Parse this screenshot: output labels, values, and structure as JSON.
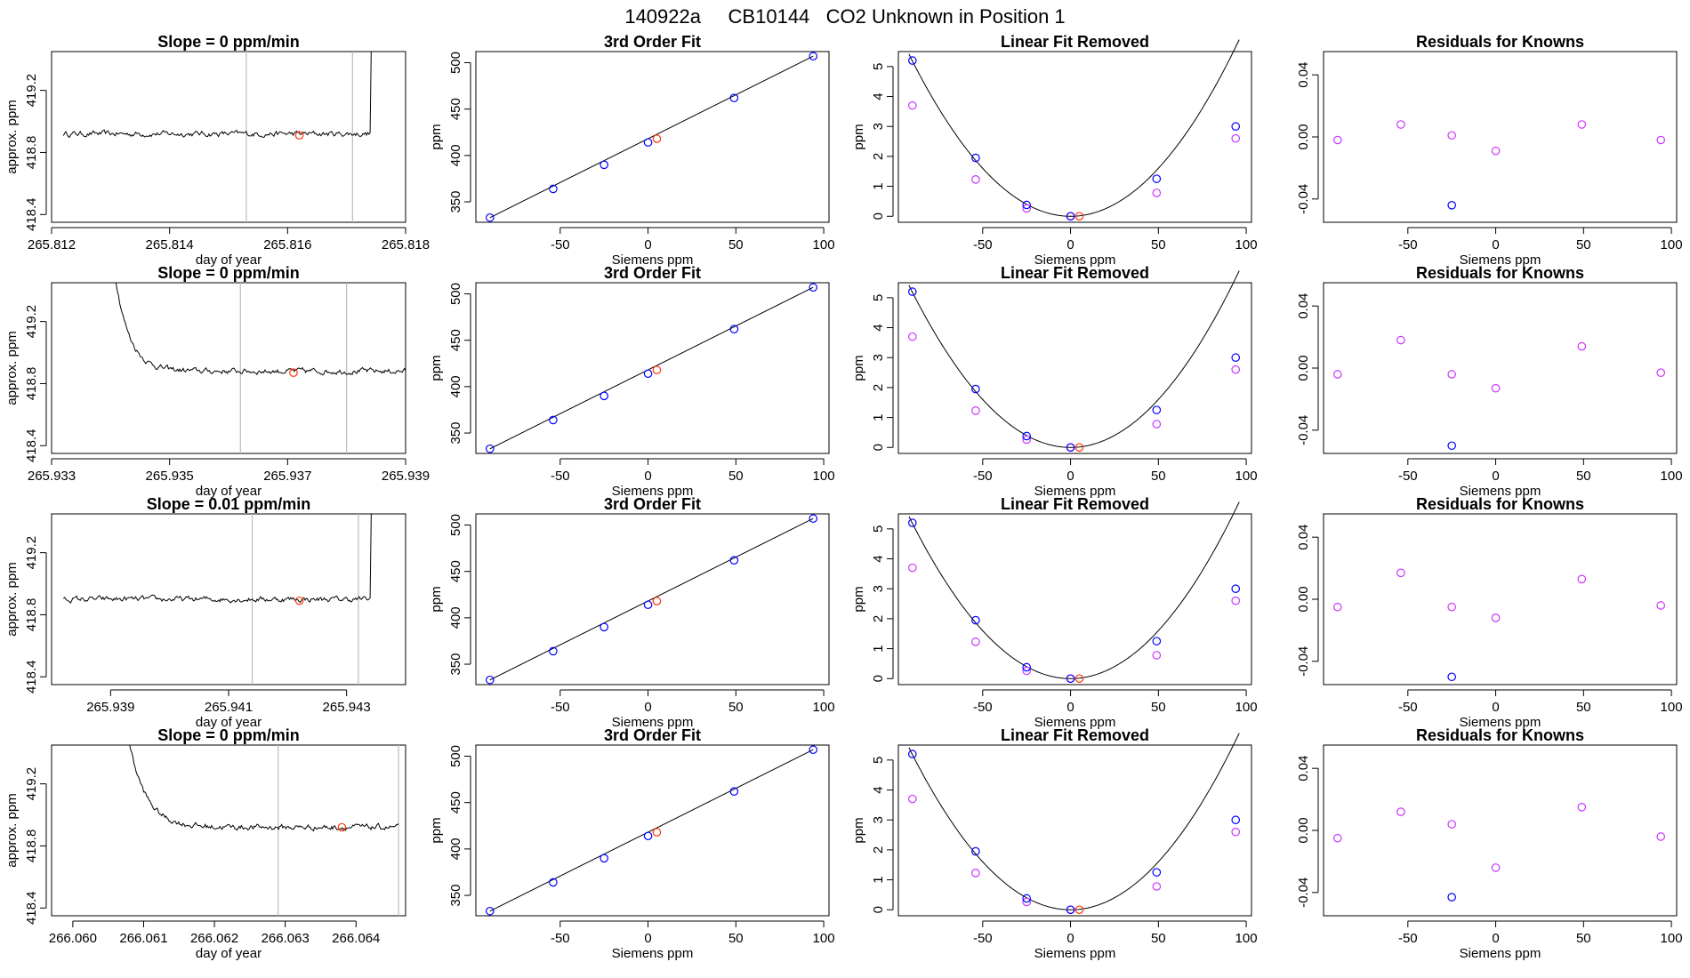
{
  "figure": {
    "title_parts": [
      "140922a",
      "CB10144",
      "CO2 Unknown in Position  1"
    ]
  },
  "colors": {
    "known": "#0000ff",
    "estimated": "#cc33ff",
    "unknown": "#ff3300",
    "line": "#000000",
    "window": "#bbbbbb"
  },
  "chart_data": [
    {
      "type": "line",
      "row": 1,
      "title": "Slope =  0  ppm/min",
      "xlabel": "day of year",
      "ylabel": "approx. ppm",
      "xlim": [
        265.812,
        265.818
      ],
      "ylim": [
        418.35,
        419.45
      ],
      "xticks": [
        265.812,
        265.814,
        265.816,
        265.818
      ],
      "xtick_labels": [
        "265.812",
        "265.814",
        "265.816",
        "265.818"
      ],
      "yticks": [
        418.4,
        418.8,
        419.2
      ],
      "ytick_labels": [
        "418.4",
        "418.8",
        "419.2"
      ],
      "trace": {
        "x_start": 265.8122,
        "x_end": 265.8175,
        "baseline": 418.92,
        "noise": 0.018,
        "jump_start": 265.8174,
        "jump_height": 0.6,
        "decay": false
      },
      "window_lines": [
        265.8153,
        265.8171
      ],
      "unknown_point": {
        "x": 265.8162,
        "y": 418.91
      }
    },
    {
      "type": "line",
      "row": 2,
      "title": "Slope =  0  ppm/min",
      "xlabel": "day of year",
      "ylabel": "approx. ppm",
      "xlim": [
        265.933,
        265.939
      ],
      "ylim": [
        418.35,
        419.45
      ],
      "xticks": [
        265.933,
        265.935,
        265.937,
        265.939
      ],
      "xtick_labels": [
        "265.933",
        "265.935",
        "265.937",
        "265.939"
      ],
      "yticks": [
        418.4,
        418.8,
        419.2
      ],
      "ytick_labels": [
        "418.4",
        "418.8",
        "419.2"
      ],
      "trace": {
        "x_start": 265.934,
        "x_end": 265.939,
        "baseline": 418.88,
        "noise": 0.018,
        "jump_start": null,
        "jump_height": 0,
        "decay": true,
        "decay_peak": 419.45,
        "decay_span": 0.001
      },
      "window_lines": [
        265.9362,
        265.938
      ],
      "unknown_point": {
        "x": 265.9371,
        "y": 418.87
      }
    },
    {
      "type": "line",
      "row": 3,
      "title": "Slope =  0.01  ppm/min",
      "xlabel": "day of year",
      "ylabel": "approx. ppm",
      "xlim": [
        265.938,
        265.944
      ],
      "ylim": [
        418.35,
        419.45
      ],
      "xticks": [
        265.939,
        265.941,
        265.943
      ],
      "xtick_labels": [
        "265.939",
        "265.941",
        "265.943"
      ],
      "yticks": [
        418.4,
        418.8,
        419.2
      ],
      "ytick_labels": [
        "418.4",
        "418.8",
        "419.2"
      ],
      "trace": {
        "x_start": 265.9382,
        "x_end": 265.9435,
        "baseline": 418.9,
        "noise": 0.018,
        "jump_start": 265.9434,
        "jump_height": 0.6,
        "decay": false
      },
      "window_lines": [
        265.9414,
        265.9432
      ],
      "unknown_point": {
        "x": 265.9422,
        "y": 418.89
      }
    },
    {
      "type": "line",
      "row": 4,
      "title": "Slope =  0  ppm/min",
      "xlabel": "day of year",
      "ylabel": "approx. ppm",
      "xlim": [
        266.0597,
        266.0647
      ],
      "ylim": [
        418.35,
        419.45
      ],
      "xticks": [
        266.06,
        266.061,
        266.062,
        266.063,
        266.064
      ],
      "xtick_labels": [
        "266.060",
        "266.061",
        "266.062",
        "266.063",
        "266.064"
      ],
      "yticks": [
        418.4,
        418.8,
        419.2
      ],
      "ytick_labels": [
        "418.4",
        "418.8",
        "419.2"
      ],
      "trace": {
        "x_start": 266.0607,
        "x_end": 266.0646,
        "baseline": 418.92,
        "noise": 0.018,
        "jump_start": null,
        "jump_height": 0,
        "decay": true,
        "decay_peak": 419.45,
        "decay_span": 0.001
      },
      "window_lines": [
        266.0629,
        266.0646
      ],
      "unknown_point": {
        "x": 266.0638,
        "y": 418.92
      }
    }
  ],
  "fit_panel": {
    "title": "3rd Order Fit",
    "xlabel": "Siemens ppm",
    "ylabel": "ppm",
    "xlim": [
      -98,
      103
    ],
    "ylim": [
      328,
      512
    ],
    "xticks": [
      -50,
      0,
      50,
      100
    ],
    "xtick_labels": [
      "-50",
      "0",
      "50",
      "100"
    ],
    "yticks": [
      350,
      400,
      450,
      500
    ],
    "ytick_labels": [
      "350",
      "400",
      "450",
      "500"
    ],
    "known_x": [
      -90,
      -54,
      -25,
      0,
      49,
      94
    ],
    "known_y": [
      333,
      364,
      390,
      414,
      462,
      507
    ],
    "line_x": [
      -90,
      94
    ],
    "line_y": [
      333,
      507
    ],
    "unknown": {
      "x": 5,
      "y": 418
    }
  },
  "linear_removed_panel": {
    "title": "Linear Fit Removed",
    "xlabel": "Siemens ppm",
    "ylabel": "ppm",
    "xlim": [
      -98,
      103
    ],
    "ylim": [
      -0.2,
      5.5
    ],
    "xticks": [
      -50,
      0,
      50,
      100
    ],
    "xtick_labels": [
      "-50",
      "0",
      "50",
      "100"
    ],
    "yticks": [
      0,
      1,
      2,
      3,
      4,
      5
    ],
    "ytick_labels": [
      "0",
      "1",
      "2",
      "3",
      "4",
      "5"
    ],
    "curve_x_range": [
      -92,
      96
    ],
    "curve_coeffs": [
      0.00064,
      0.0,
      0.0
    ],
    "known_x": [
      -90,
      -54,
      -25,
      0,
      49,
      94
    ],
    "known_y": [
      5.2,
      1.95,
      0.38,
      0.0,
      1.25,
      3.0
    ],
    "estimated_x": [
      -90,
      -54,
      -25,
      0,
      49,
      94
    ],
    "estimated_y": [
      3.7,
      1.23,
      0.26,
      0.0,
      0.78,
      2.6
    ],
    "unknown": {
      "x": 5,
      "y": 0.0
    }
  },
  "residual_panels": [
    {
      "title": "Residuals for Knowns",
      "xlabel": "Siemens ppm",
      "ylabel": "",
      "xlim": [
        -98,
        103
      ],
      "ylim": [
        -0.055,
        0.055
      ],
      "xticks": [
        -50,
        0,
        50,
        100
      ],
      "xtick_labels": [
        "-50",
        "0",
        "50",
        "100"
      ],
      "yticks": [
        -0.04,
        0.0,
        0.04
      ],
      "ytick_labels": [
        "-0.04",
        "0.00",
        "0.04"
      ],
      "x": [
        -90,
        -54,
        -25,
        0,
        49,
        94
      ],
      "y": [
        -0.002,
        0.008,
        0.001,
        -0.009,
        0.008,
        -0.002
      ],
      "highlight_x": -25,
      "highlight_y": -0.044
    },
    {
      "title": "Residuals for Knowns",
      "xlabel": "Siemens ppm",
      "ylabel": "",
      "xlim": [
        -98,
        103
      ],
      "ylim": [
        -0.055,
        0.055
      ],
      "xticks": [
        -50,
        0,
        50,
        100
      ],
      "xtick_labels": [
        "-50",
        "0",
        "50",
        "100"
      ],
      "yticks": [
        -0.04,
        0.0,
        0.04
      ],
      "ytick_labels": [
        "-0.04",
        "0.00",
        "0.04"
      ],
      "x": [
        -90,
        -54,
        -25,
        0,
        49,
        94
      ],
      "y": [
        -0.004,
        0.018,
        -0.004,
        -0.013,
        0.014,
        -0.003
      ],
      "highlight_x": -25,
      "highlight_y": -0.05
    },
    {
      "title": "Residuals for Knowns",
      "xlabel": "Siemens ppm",
      "ylabel": "",
      "xlim": [
        -98,
        103
      ],
      "ylim": [
        -0.055,
        0.055
      ],
      "xticks": [
        -50,
        0,
        50,
        100
      ],
      "xtick_labels": [
        "-50",
        "0",
        "50",
        "100"
      ],
      "yticks": [
        -0.04,
        0.0,
        0.04
      ],
      "ytick_labels": [
        "-0.04",
        "0.00",
        "0.04"
      ],
      "x": [
        -90,
        -54,
        -25,
        0,
        49,
        94
      ],
      "y": [
        -0.005,
        0.017,
        -0.005,
        -0.012,
        0.013,
        -0.004
      ],
      "highlight_x": -25,
      "highlight_y": -0.05
    },
    {
      "title": "Residuals for Knowns",
      "xlabel": "Siemens ppm",
      "ylabel": "",
      "xlim": [
        -98,
        103
      ],
      "ylim": [
        -0.055,
        0.055
      ],
      "xticks": [
        -50,
        0,
        50,
        100
      ],
      "xtick_labels": [
        "-50",
        "0",
        "50",
        "100"
      ],
      "yticks": [
        -0.04,
        0.0,
        0.04
      ],
      "ytick_labels": [
        "-0.04",
        "0.00",
        "0.04"
      ],
      "x": [
        -90,
        -54,
        -25,
        0,
        49,
        94
      ],
      "y": [
        -0.005,
        0.012,
        0.004,
        -0.024,
        0.015,
        -0.004
      ],
      "highlight_x": -25,
      "highlight_y": -0.043
    }
  ]
}
